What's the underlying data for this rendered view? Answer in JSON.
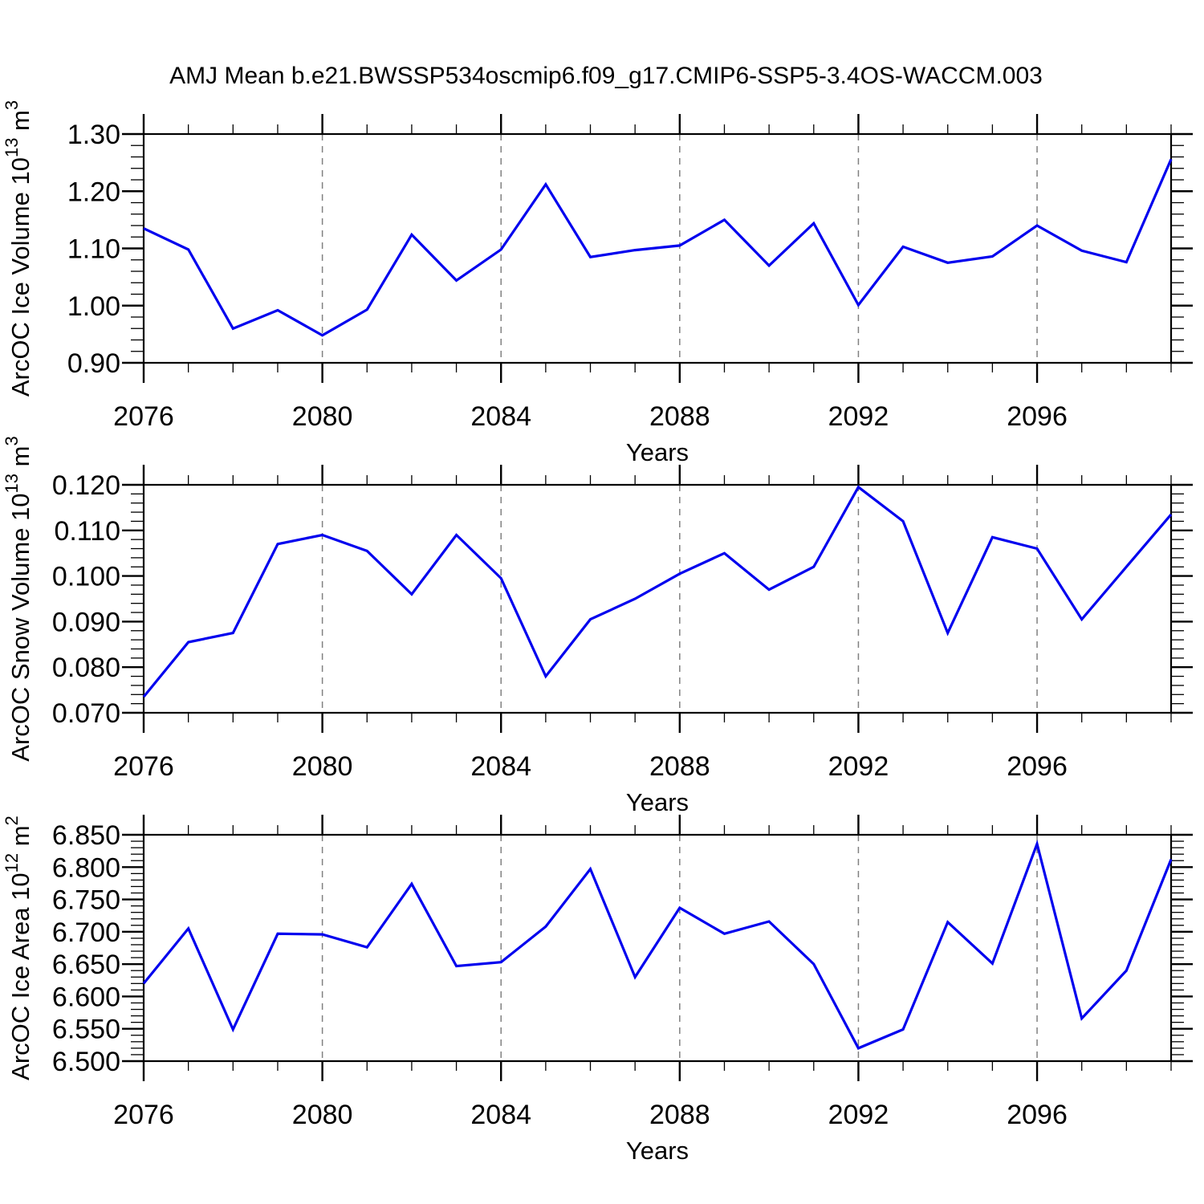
{
  "title": "AMJ Mean b.e21.BWSSP534oscmip6.f09_g17.CMIP6-SSP5-3.4OS-WACCM.003",
  "xlabel": "Years",
  "colors": {
    "line": "#0000ee",
    "grid": "#808080",
    "axis": "#000000",
    "text": "#000000",
    "background": "#ffffff"
  },
  "x_years": [
    2076,
    2077,
    2078,
    2079,
    2080,
    2081,
    2082,
    2083,
    2084,
    2085,
    2086,
    2087,
    2088,
    2089,
    2090,
    2091,
    2092,
    2093,
    2094,
    2095,
    2096,
    2097,
    2098,
    2099
  ],
  "x_major_ticks": [
    2076,
    2080,
    2084,
    2088,
    2092,
    2096
  ],
  "x_grid_years": [
    2080,
    2084,
    2088,
    2092,
    2096
  ],
  "chart_data": [
    {
      "type": "line",
      "name": "ice-volume",
      "ylabel_text": "ArcOC Ice Volume 10^13 m^3",
      "ylabel_segments": [
        {
          "text": "ArcOC Ice Volume 10",
          "sup": false
        },
        {
          "text": "13",
          "sup": true
        },
        {
          "text": " m",
          "sup": false
        },
        {
          "text": "3",
          "sup": true
        }
      ],
      "xlabel": "Years",
      "ylim": [
        0.9,
        1.3
      ],
      "ytick_step": 0.1,
      "yminor_step": 0.02,
      "ydecimals": 2,
      "x": [
        2076,
        2077,
        2078,
        2079,
        2080,
        2081,
        2082,
        2083,
        2084,
        2085,
        2086,
        2087,
        2088,
        2089,
        2090,
        2091,
        2092,
        2093,
        2094,
        2095,
        2096,
        2097,
        2098,
        2099
      ],
      "values": [
        1.135,
        1.098,
        0.96,
        0.992,
        0.948,
        0.993,
        1.124,
        1.044,
        1.098,
        1.212,
        1.085,
        1.097,
        1.105,
        1.15,
        1.07,
        1.144,
        1.001,
        1.103,
        1.075,
        1.086,
        1.14,
        1.096,
        1.076,
        1.256
      ]
    },
    {
      "type": "line",
      "name": "snow-volume",
      "ylabel_text": "ArcOC Snow Volume 10^13 m^3",
      "ylabel_segments": [
        {
          "text": "ArcOC Snow Volume 10",
          "sup": false
        },
        {
          "text": "13",
          "sup": true
        },
        {
          "text": " m",
          "sup": false
        },
        {
          "text": "3",
          "sup": true
        }
      ],
      "xlabel": "Years",
      "ylim": [
        0.07,
        0.12
      ],
      "ytick_step": 0.01,
      "yminor_step": 0.002,
      "ydecimals": 3,
      "x": [
        2076,
        2077,
        2078,
        2079,
        2080,
        2081,
        2082,
        2083,
        2084,
        2085,
        2086,
        2087,
        2088,
        2089,
        2090,
        2091,
        2092,
        2093,
        2094,
        2095,
        2096,
        2097,
        2098,
        2099
      ],
      "values": [
        0.0735,
        0.0855,
        0.0875,
        0.107,
        0.109,
        0.1055,
        0.096,
        0.109,
        0.0995,
        0.078,
        0.0905,
        0.095,
        0.1005,
        0.105,
        0.097,
        0.102,
        0.1195,
        0.112,
        0.0875,
        0.1085,
        0.106,
        0.0905,
        0.102,
        0.1135
      ]
    },
    {
      "type": "line",
      "name": "ice-area",
      "ylabel_text": "ArcOC Ice Area 10^12 m^2",
      "ylabel_segments": [
        {
          "text": "ArcOC Ice Area 10",
          "sup": false
        },
        {
          "text": "12",
          "sup": true
        },
        {
          "text": " m",
          "sup": false
        },
        {
          "text": "2",
          "sup": true
        }
      ],
      "xlabel": "Years",
      "ylim": [
        6.5,
        6.85
      ],
      "ytick_step": 0.05,
      "yminor_step": 0.01,
      "ydecimals": 3,
      "x": [
        2076,
        2077,
        2078,
        2079,
        2080,
        2081,
        2082,
        2083,
        2084,
        2085,
        2086,
        2087,
        2088,
        2089,
        2090,
        2091,
        2092,
        2093,
        2094,
        2095,
        2096,
        2097,
        2098,
        2099
      ],
      "values": [
        6.62,
        6.705,
        6.549,
        6.697,
        6.696,
        6.676,
        6.774,
        6.647,
        6.653,
        6.708,
        6.797,
        6.63,
        6.737,
        6.697,
        6.716,
        6.65,
        6.52,
        6.549,
        6.715,
        6.651,
        6.836,
        6.566,
        6.64,
        6.812
      ]
    }
  ]
}
